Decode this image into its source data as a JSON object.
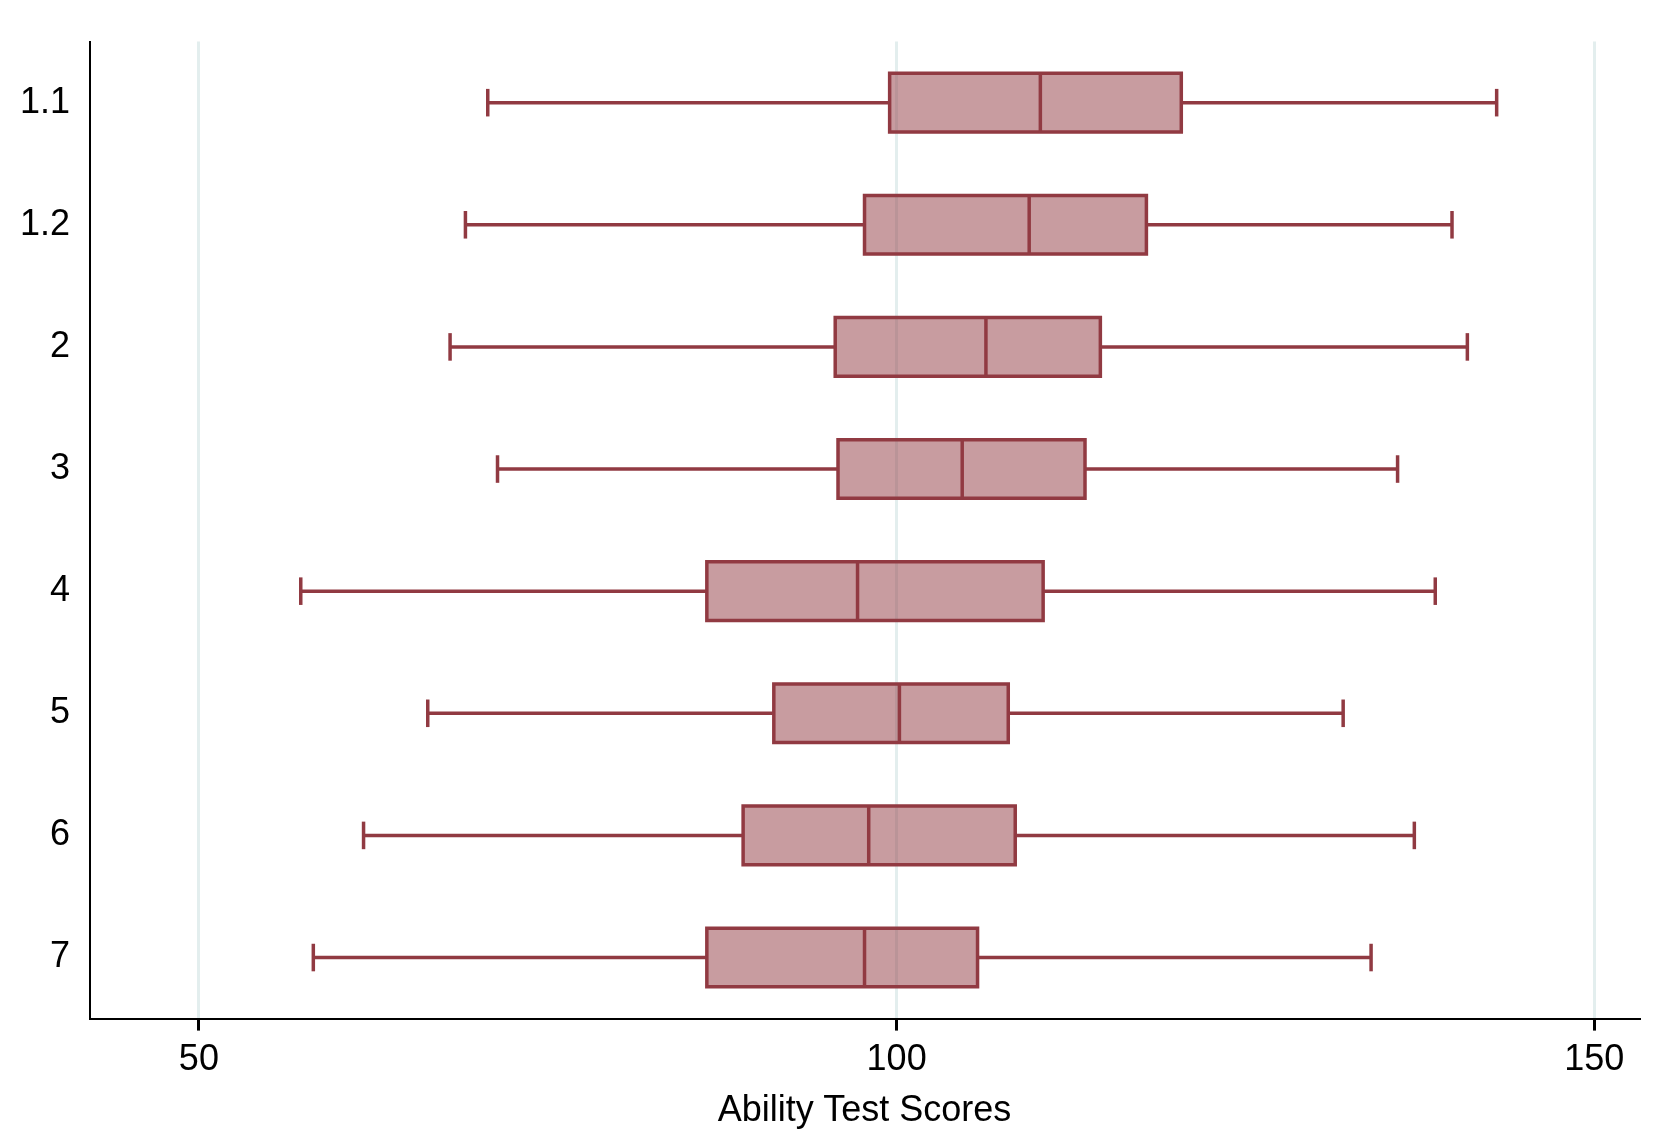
{
  "chart_data": {
    "type": "box",
    "orientation": "horizontal",
    "xlabel": "Ability Test Scores",
    "categories": [
      "1.1",
      "1.2",
      "2",
      "3",
      "4",
      "5",
      "6",
      "7"
    ],
    "color": "#913a42",
    "boxes": [
      {
        "low": 70.7,
        "q1": 99.5,
        "median": 110.3,
        "q3": 120.4,
        "high": 143.0
      },
      {
        "low": 69.1,
        "q1": 97.7,
        "median": 109.5,
        "q3": 117.9,
        "high": 139.8
      },
      {
        "low": 68.0,
        "q1": 95.6,
        "median": 106.4,
        "q3": 114.6,
        "high": 140.9
      },
      {
        "low": 71.4,
        "q1": 95.8,
        "median": 104.7,
        "q3": 113.5,
        "high": 135.9
      },
      {
        "low": 57.3,
        "q1": 86.4,
        "median": 97.2,
        "q3": 110.5,
        "high": 138.6
      },
      {
        "low": 66.4,
        "q1": 91.2,
        "median": 100.2,
        "q3": 108.0,
        "high": 132.0
      },
      {
        "low": 61.8,
        "q1": 89.0,
        "median": 98.0,
        "q3": 108.5,
        "high": 137.1
      },
      {
        "low": 58.2,
        "q1": 86.4,
        "median": 97.7,
        "q3": 105.8,
        "high": 134.0
      }
    ],
    "xlim": [
      42.2,
      153.2
    ],
    "xticks": [
      50,
      100,
      150
    ],
    "grid": "x"
  }
}
